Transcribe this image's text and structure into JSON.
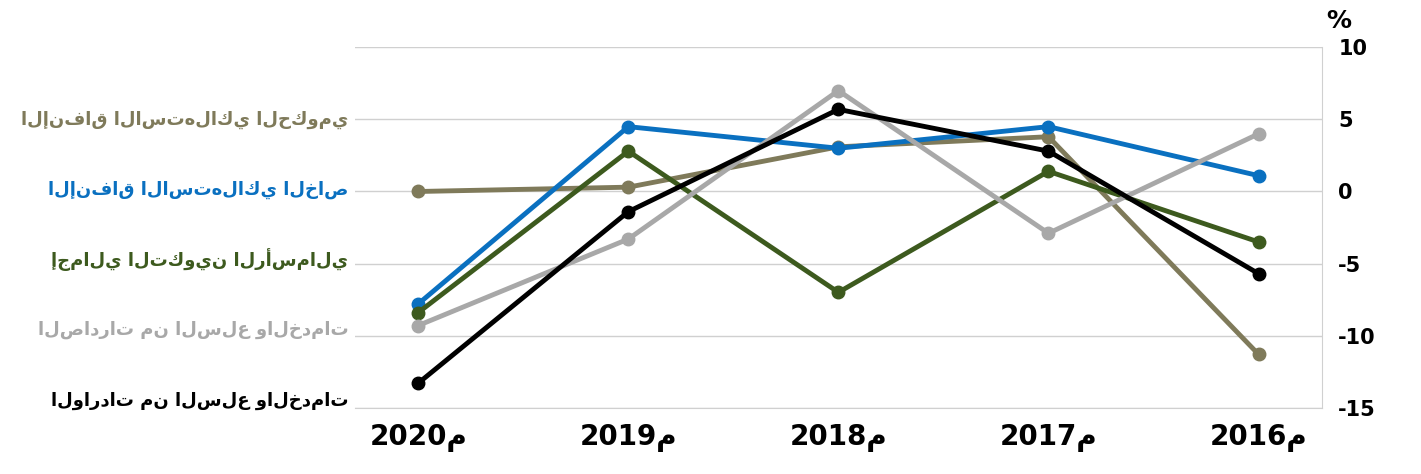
{
  "chart_data": {
    "type": "line",
    "y_label": "%",
    "categories": [
      "2020م",
      "2019م",
      "2018م",
      "2017م",
      "2016م"
    ],
    "series": [
      {
        "name": "الإنفاق الاستهلاكي الحكومي",
        "color": "#7f7a5a",
        "marker": "o",
        "values": [
          0.0,
          0.3,
          3.1,
          3.8,
          -11.3
        ]
      },
      {
        "name": "الإنفاق الاستهلاكي الخاص",
        "color": "#0a70c0",
        "marker": "o",
        "values": [
          -7.8,
          4.5,
          3.0,
          4.5,
          1.1
        ]
      },
      {
        "name": "إجمالي التكوين الرأسمالي",
        "color": "#3d5a1e",
        "marker": "o",
        "values": [
          -8.4,
          2.8,
          -7.0,
          1.4,
          -3.5
        ]
      },
      {
        "name": "الصادرات من السلع والخدمات",
        "color": "#a8a8a8",
        "marker": "o",
        "values": [
          -9.3,
          -3.3,
          7.0,
          -2.9,
          4.0
        ]
      },
      {
        "name": "الواردات من السلع والخدمات",
        "color": "#000000",
        "marker": "o",
        "values": [
          -13.3,
          -1.4,
          5.7,
          2.8,
          -5.7
        ]
      }
    ],
    "ylim": [
      -15,
      10
    ],
    "yticks": [
      -15,
      -10,
      -5,
      0,
      5,
      10
    ],
    "grid": true
  }
}
